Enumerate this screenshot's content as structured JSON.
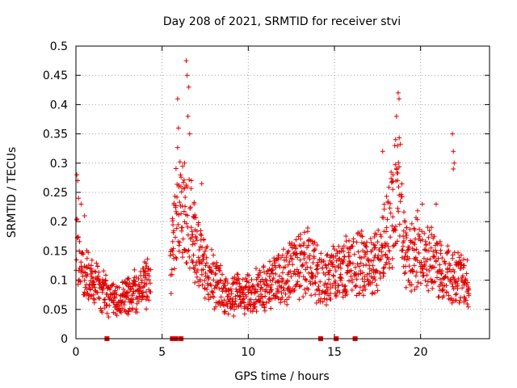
{
  "chart_data": {
    "type": "scatter",
    "title": "Day 208 of 2021, SRMTID for receiver stvi",
    "xlabel": "GPS time / hours",
    "ylabel": "SRMTID / TECUs",
    "xlim": [
      0,
      24
    ],
    "ylim": [
      0,
      0.5
    ],
    "x_ticks": [
      0,
      5,
      10,
      15,
      20
    ],
    "y_ticks": [
      0,
      0.05,
      0.1,
      0.15,
      0.2,
      0.25,
      0.3,
      0.35,
      0.4,
      0.45,
      0.5
    ],
    "y_tick_labels": [
      "0",
      "0.05",
      "0.1",
      "0.15",
      "0.2",
      "0.25",
      "0.3",
      "0.35",
      "0.4",
      "0.45",
      "0.5"
    ],
    "grid": true,
    "marker": "+",
    "color": "#e00000",
    "zero_markers": [
      1.8,
      5.6,
      5.7,
      5.8,
      6.1,
      14.2,
      15.1,
      16.2
    ],
    "series": [
      {
        "name": "SRMTID",
        "anchors": [
          [
            0.0,
            0.16
          ],
          [
            0.3,
            0.13
          ],
          [
            0.6,
            0.11
          ],
          [
            1.0,
            0.095
          ],
          [
            1.5,
            0.08
          ],
          [
            2.0,
            0.07
          ],
          [
            2.5,
            0.06
          ],
          [
            3.0,
            0.075
          ],
          [
            3.5,
            0.08
          ],
          [
            4.0,
            0.09
          ],
          [
            4.3,
            0.1
          ],
          [
            5.5,
            0.12
          ],
          [
            5.9,
            0.24
          ],
          [
            6.2,
            0.22
          ],
          [
            6.6,
            0.2
          ],
          [
            7.0,
            0.15
          ],
          [
            7.5,
            0.12
          ],
          [
            8.0,
            0.1
          ],
          [
            8.5,
            0.08
          ],
          [
            9.0,
            0.065
          ],
          [
            9.5,
            0.08
          ],
          [
            10.0,
            0.075
          ],
          [
            10.5,
            0.08
          ],
          [
            11.0,
            0.085
          ],
          [
            11.5,
            0.1
          ],
          [
            12.0,
            0.105
          ],
          [
            12.5,
            0.12
          ],
          [
            13.0,
            0.125
          ],
          [
            13.5,
            0.13
          ],
          [
            14.0,
            0.11
          ],
          [
            14.5,
            0.1
          ],
          [
            15.0,
            0.11
          ],
          [
            15.5,
            0.12
          ],
          [
            16.0,
            0.12
          ],
          [
            16.5,
            0.13
          ],
          [
            17.0,
            0.12
          ],
          [
            17.5,
            0.13
          ],
          [
            18.0,
            0.18
          ],
          [
            18.5,
            0.22
          ],
          [
            18.8,
            0.25
          ],
          [
            19.0,
            0.15
          ],
          [
            19.5,
            0.14
          ],
          [
            20.0,
            0.16
          ],
          [
            20.5,
            0.14
          ],
          [
            21.0,
            0.12
          ],
          [
            21.5,
            0.11
          ],
          [
            22.0,
            0.1
          ],
          [
            22.5,
            0.1
          ],
          [
            22.8,
            0.09
          ]
        ],
        "spikes": [
          [
            0.05,
            0.28
          ],
          [
            0.1,
            0.27
          ],
          [
            0.15,
            0.24
          ],
          [
            0.3,
            0.23
          ],
          [
            0.5,
            0.21
          ],
          [
            5.9,
            0.41
          ],
          [
            5.95,
            0.36
          ],
          [
            6.4,
            0.475
          ],
          [
            6.45,
            0.45
          ],
          [
            6.55,
            0.43
          ],
          [
            6.5,
            0.38
          ],
          [
            6.6,
            0.35
          ],
          [
            6.3,
            0.3
          ],
          [
            6.7,
            0.27
          ],
          [
            7.3,
            0.265
          ],
          [
            18.7,
            0.42
          ],
          [
            18.75,
            0.41
          ],
          [
            18.6,
            0.38
          ],
          [
            18.55,
            0.34
          ],
          [
            18.5,
            0.33
          ],
          [
            17.8,
            0.32
          ],
          [
            18.4,
            0.28
          ],
          [
            21.85,
            0.35
          ],
          [
            21.9,
            0.32
          ],
          [
            21.95,
            0.3
          ],
          [
            21.9,
            0.29
          ],
          [
            20.1,
            0.23
          ],
          [
            20.9,
            0.23
          ]
        ]
      }
    ]
  }
}
